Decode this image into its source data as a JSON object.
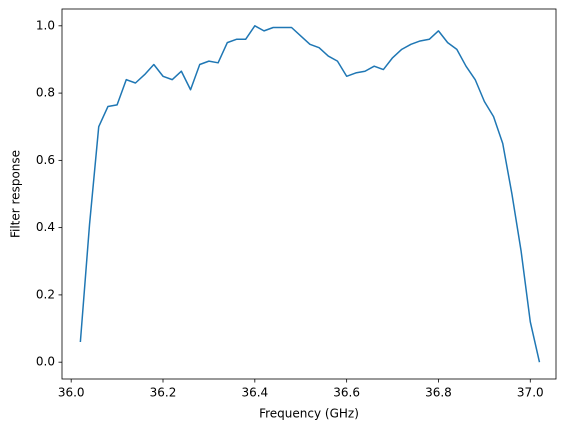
{
  "chart_data": {
    "type": "line",
    "xlabel": "Frequency (GHz)",
    "ylabel": "Filter response",
    "x": [
      36.02,
      36.04,
      36.06,
      36.08,
      36.1,
      36.12,
      36.14,
      36.16,
      36.18,
      36.2,
      36.22,
      36.24,
      36.26,
      36.28,
      36.3,
      36.32,
      36.34,
      36.36,
      36.38,
      36.4,
      36.42,
      36.44,
      36.46,
      36.48,
      36.5,
      36.52,
      36.54,
      36.56,
      36.58,
      36.6,
      36.62,
      36.64,
      36.66,
      36.68,
      36.7,
      36.72,
      36.74,
      36.76,
      36.78,
      36.8,
      36.82,
      36.84,
      36.86,
      36.88,
      36.9,
      36.92,
      36.94,
      36.96,
      36.98,
      37.0,
      37.02
    ],
    "series": [
      {
        "color": "#1f77b4",
        "values": [
          0.06,
          0.41,
          0.7,
          0.76,
          0.765,
          0.84,
          0.83,
          0.855,
          0.885,
          0.85,
          0.84,
          0.865,
          0.81,
          0.885,
          0.895,
          0.89,
          0.95,
          0.96,
          0.96,
          1.0,
          0.985,
          0.995,
          0.995,
          0.995,
          0.97,
          0.945,
          0.935,
          0.91,
          0.895,
          0.85,
          0.86,
          0.865,
          0.88,
          0.87,
          0.905,
          0.93,
          0.945,
          0.955,
          0.96,
          0.985,
          0.95,
          0.93,
          0.88,
          0.84,
          0.775,
          0.73,
          0.65,
          0.5,
          0.33,
          0.12,
          0.0
        ]
      }
    ],
    "xlim": [
      35.98,
      37.056
    ],
    "ylim": [
      -0.05,
      1.05
    ],
    "xticks": [
      {
        "value": 36.0,
        "label": "36.0"
      },
      36.2,
      36.4,
      36.6,
      36.8,
      {
        "value": 37.0,
        "label": "37.0"
      }
    ],
    "yticks": [
      {
        "value": 0.0,
        "label": "0.0"
      },
      0.2,
      0.4,
      0.6,
      0.8,
      {
        "value": 1.0,
        "label": "1.0"
      }
    ]
  }
}
